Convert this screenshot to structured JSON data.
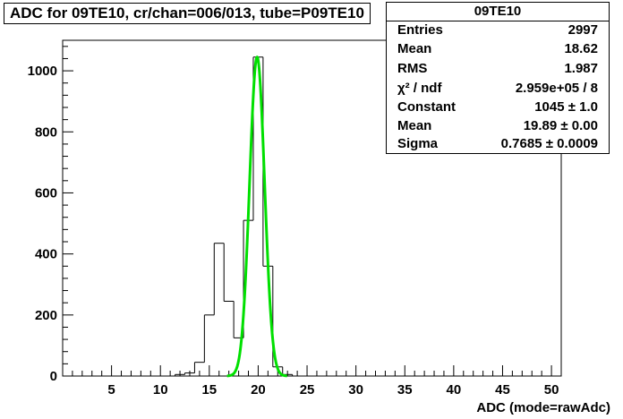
{
  "title": "ADC for 09TE10,  cr/chan=006/013,  tube=P09TE10",
  "stats": {
    "name": "09TE10",
    "rows": [
      {
        "label": "Entries",
        "value": "2997"
      },
      {
        "label": "Mean",
        "value": "18.62"
      },
      {
        "label": "RMS",
        "value": "1.987"
      },
      {
        "label": "χ² / ndf",
        "value": "2.959e+05 / 8"
      },
      {
        "label": "Constant",
        "value": "1045 ± 1.0"
      },
      {
        "label": "Mean",
        "value": "19.89 ± 0.00"
      },
      {
        "label": "Sigma",
        "value": "0.7685 ± 0.0009"
      }
    ]
  },
  "chart_data": {
    "type": "bar",
    "style": "step-histogram",
    "title": "ADC for 09TE10,  cr/chan=006/013,  tube=P09TE10",
    "xlabel": "ADC (mode=rawAdc)",
    "ylabel": "",
    "xlim": [
      0,
      51
    ],
    "ylim": [
      0,
      1100
    ],
    "xticks": [
      5,
      10,
      15,
      20,
      25,
      30,
      35,
      40,
      45,
      50
    ],
    "yticks": [
      0,
      200,
      400,
      600,
      800,
      1000
    ],
    "bin_width": 1,
    "bins": [
      {
        "x": 12,
        "y": 5
      },
      {
        "x": 13,
        "y": 10
      },
      {
        "x": 14,
        "y": 45
      },
      {
        "x": 15,
        "y": 200
      },
      {
        "x": 16,
        "y": 435
      },
      {
        "x": 17,
        "y": 245
      },
      {
        "x": 18,
        "y": 125
      },
      {
        "x": 19,
        "y": 510
      },
      {
        "x": 20,
        "y": 1045
      },
      {
        "x": 21,
        "y": 360
      },
      {
        "x": 22,
        "y": 30
      },
      {
        "x": 23,
        "y": 5
      }
    ],
    "fit": {
      "function": "gaus",
      "constant": 1045,
      "mean": 19.89,
      "sigma": 0.7685,
      "color": "#00e000"
    },
    "line_color": "#000000"
  }
}
